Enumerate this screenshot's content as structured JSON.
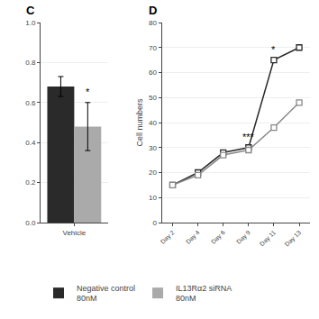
{
  "chart_data": [
    {
      "type": "bar",
      "title": "C",
      "categories": [
        "Vehicle"
      ],
      "series": [
        {
          "name": "Negative control\n80nM",
          "color": "#2a2a2a",
          "values": [
            0.68
          ],
          "errors": [
            0.05
          ]
        },
        {
          "name": "IL13Rα2 siRNA\n80nM",
          "color": "#aaaaaa",
          "values": [
            0.48
          ],
          "errors": [
            0.12
          ]
        }
      ],
      "annotations": [
        {
          "text": "*",
          "category": "Vehicle",
          "series": "IL13Rα2 siRNA\n80nM"
        }
      ],
      "ylim": [
        0,
        1.0
      ],
      "yticks": [
        {
          "value": 0,
          "label": "0.0"
        },
        0.2,
        0.4,
        0.6,
        0.8,
        {
          "value": 1,
          "label": "1.0"
        }
      ],
      "grid": true,
      "legend": "bottom"
    },
    {
      "type": "line",
      "title": "D",
      "categories": [
        "Day 2",
        "Day 4",
        "Day 6",
        "Day 9",
        "Day 11",
        "Day 13"
      ],
      "ylabel": "Cell numbers",
      "series": [
        {
          "color": "#2a2a2a",
          "marker": "square",
          "values": [
            15000,
            20000,
            28000,
            30000,
            65000,
            70000
          ]
        },
        {
          "color": "#888888",
          "marker": "square",
          "values": [
            15000,
            19000,
            27000,
            29000,
            38000,
            48000
          ]
        }
      ],
      "annotations": [
        {
          "text": "***",
          "category": "Day 9"
        },
        {
          "text": "*",
          "category": "Day 11"
        }
      ],
      "ylim": [
        0,
        80000
      ],
      "yticks": [
        0,
        {
          "value": 10000,
          "label": "10"
        },
        {
          "value": 20000,
          "label": "20"
        },
        {
          "value": 30000,
          "label": "30"
        },
        {
          "value": 40000,
          "label": "40"
        },
        {
          "value": 50000,
          "label": "50"
        },
        {
          "value": 60000,
          "label": "60"
        },
        {
          "value": 70000,
          "label": "70"
        },
        {
          "value": 80000,
          "label": "80"
        }
      ],
      "grid": true
    }
  ]
}
